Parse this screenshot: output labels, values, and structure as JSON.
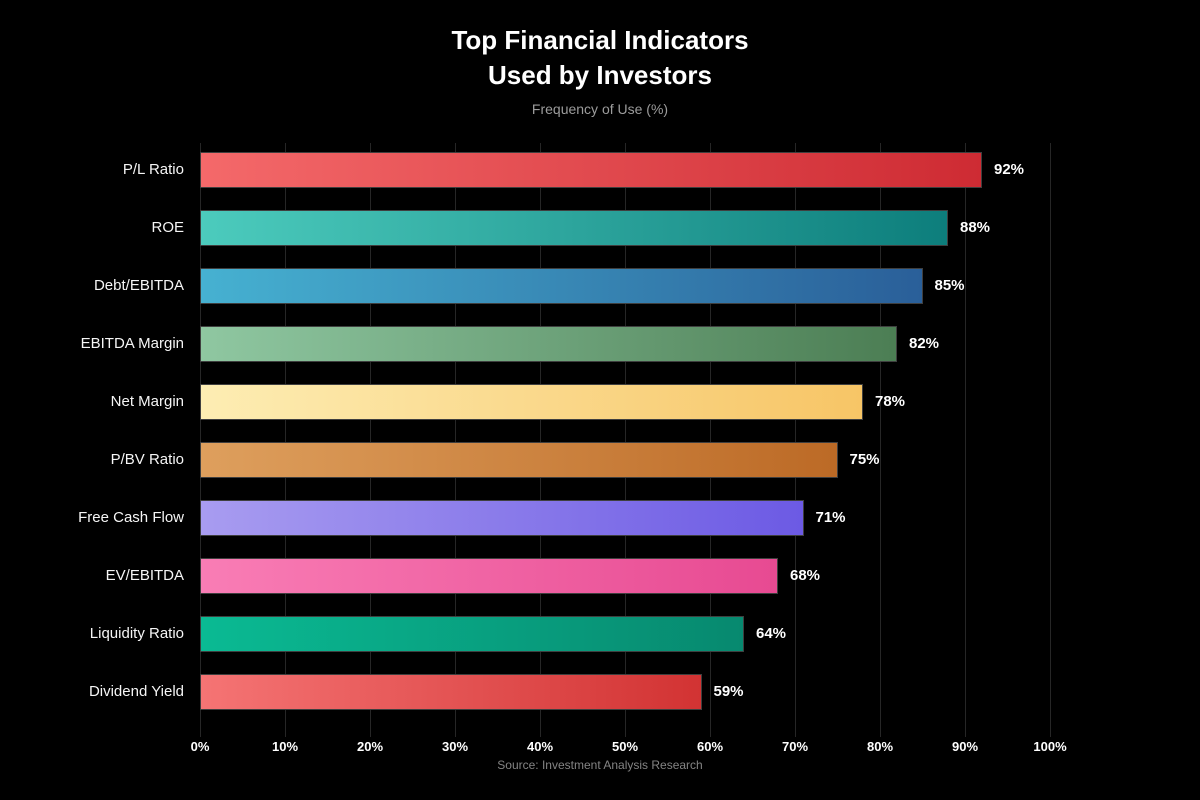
{
  "header": {
    "title": "Top Financial Indicators\nUsed by Investors",
    "subtitle": "Frequency of Use (%)"
  },
  "footer": {
    "source": "Source: Investment Analysis Research"
  },
  "chart_data": {
    "type": "bar",
    "orientation": "horizontal",
    "title": "Top Financial Indicators Used by Investors",
    "subtitle": "Frequency of Use (%)",
    "categories": [
      "P/L Ratio",
      "ROE",
      "Debt/EBITDA",
      "EBITDA Margin",
      "Net Margin",
      "P/BV Ratio",
      "Free Cash Flow",
      "EV/EBITDA",
      "Liquidity Ratio",
      "Dividend Yield"
    ],
    "values": [
      92,
      88,
      85,
      82,
      78,
      75,
      71,
      68,
      64,
      59
    ],
    "value_labels": [
      "92%",
      "88%",
      "85%",
      "82%",
      "78%",
      "75%",
      "71%",
      "68%",
      "64%",
      "59%"
    ],
    "bar_gradients": [
      {
        "start": "#f4696a",
        "end": "#ce2b33"
      },
      {
        "start": "#4ccbbd",
        "end": "#0d7e7c"
      },
      {
        "start": "#46b1d1",
        "end": "#2a5f99"
      },
      {
        "start": "#8fc7a1",
        "end": "#4c7e54"
      },
      {
        "start": "#fdedb3",
        "end": "#f7c566"
      },
      {
        "start": "#de9f5d",
        "end": "#bc6a26"
      },
      {
        "start": "#a89cf0",
        "end": "#6c5ae4"
      },
      {
        "start": "#f97db5",
        "end": "#e74a92"
      },
      {
        "start": "#0aba93",
        "end": "#07896f"
      },
      {
        "start": "#f57474",
        "end": "#d23333"
      }
    ],
    "x_ticks": [
      "0%",
      "10%",
      "20%",
      "30%",
      "40%",
      "50%",
      "60%",
      "70%",
      "80%",
      "90%",
      "100%"
    ],
    "xlim": [
      0,
      100
    ],
    "grid": true,
    "legend": "none",
    "background_color": "#000000",
    "text_color": "#ffffff",
    "source": "Source: Investment Analysis Research"
  }
}
